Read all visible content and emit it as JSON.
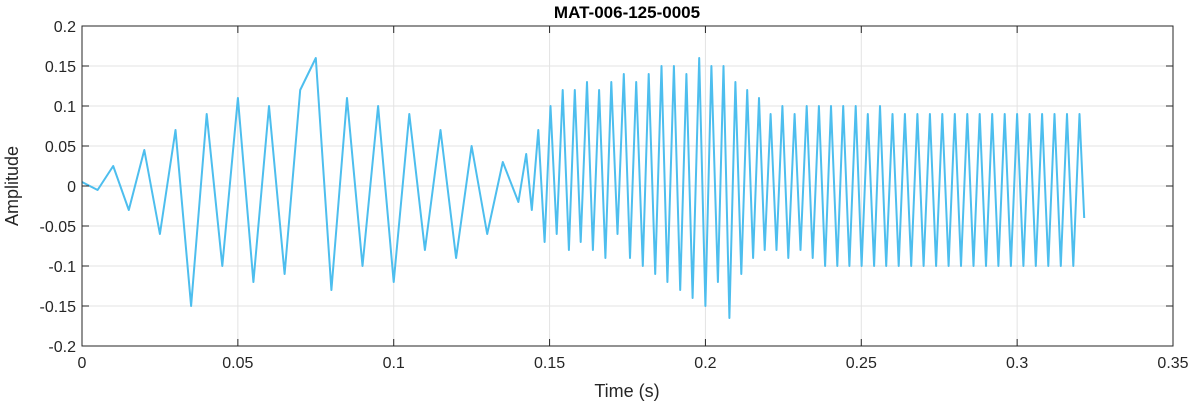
{
  "chart_data": {
    "type": "line",
    "title": "MAT-006-125-0005",
    "xlabel": "Time (s)",
    "ylabel": "Amplitude",
    "xlim": [
      0,
      0.35
    ],
    "ylim": [
      -0.2,
      0.2
    ],
    "xticks": [
      "0",
      "0.05",
      "0.1",
      "0.15",
      "0.2",
      "0.25",
      "0.3",
      "0.35"
    ],
    "yticks": [
      "0.2",
      "0.15",
      "0.1",
      "0.05",
      "0",
      "-0.05",
      "-0.1",
      "-0.15",
      "-0.2"
    ],
    "grid": true,
    "line_color": "#4DBEEE",
    "series": [
      {
        "x": [
          0,
          0.005,
          0.01,
          0.015,
          0.02,
          0.025,
          0.03,
          0.035,
          0.04,
          0.045,
          0.05,
          0.055,
          0.06,
          0.065,
          0.07,
          0.075,
          0.08,
          0.085,
          0.09,
          0.095,
          0.1,
          0.105,
          0.11,
          0.115,
          0.12,
          0.125,
          0.13,
          0.135,
          0.14,
          0.1425,
          0.1443,
          0.1464,
          0.1484,
          0.1503,
          0.1523,
          0.1542,
          0.1562,
          0.1581,
          0.16,
          0.162,
          0.1639,
          0.1659,
          0.1679,
          0.1698,
          0.1718,
          0.1738,
          0.1758,
          0.1778,
          0.1799,
          0.1818,
          0.1839,
          0.1859,
          0.1878,
          0.1899,
          0.1919,
          0.1939,
          0.1959,
          0.198,
          0.2,
          0.2019,
          0.204,
          0.2058,
          0.2077,
          0.2096,
          0.2115,
          0.2134,
          0.2153,
          0.2172,
          0.219,
          0.2209,
          0.2228,
          0.2247,
          0.2266,
          0.2286,
          0.2305,
          0.2325,
          0.2344,
          0.2364,
          0.2384,
          0.2403,
          0.2423,
          0.2442,
          0.2462,
          0.2482,
          0.2501,
          0.2521,
          0.2541,
          0.256,
          0.258,
          0.26,
          0.262,
          0.264,
          0.266,
          0.268,
          0.27,
          0.272,
          0.274,
          0.276,
          0.278,
          0.28,
          0.282,
          0.284,
          0.286,
          0.288,
          0.29,
          0.292,
          0.294,
          0.296,
          0.298,
          0.3,
          0.302,
          0.304,
          0.306,
          0.308,
          0.31,
          0.312,
          0.314,
          0.316,
          0.318,
          0.32,
          0.3215
        ],
        "y": [
          0.005,
          -0.005,
          0.025,
          -0.03,
          0.045,
          -0.06,
          0.07,
          -0.15,
          0.09,
          -0.1,
          0.11,
          -0.12,
          0.1,
          -0.11,
          0.12,
          0.16,
          -0.13,
          0.11,
          -0.1,
          0.1,
          -0.12,
          0.09,
          -0.08,
          0.07,
          -0.09,
          0.05,
          -0.06,
          0.03,
          -0.02,
          0.04,
          -0.03,
          0.07,
          -0.07,
          0.1,
          -0.06,
          0.12,
          -0.08,
          0.12,
          -0.07,
          0.13,
          -0.08,
          0.12,
          -0.09,
          0.13,
          -0.06,
          0.14,
          -0.09,
          0.13,
          -0.1,
          0.14,
          -0.11,
          0.15,
          -0.12,
          0.15,
          -0.13,
          0.14,
          -0.14,
          0.16,
          -0.15,
          0.15,
          -0.12,
          0.15,
          -0.165,
          0.13,
          -0.11,
          0.12,
          -0.09,
          0.11,
          -0.08,
          0.09,
          -0.08,
          0.1,
          -0.09,
          0.09,
          -0.08,
          0.1,
          -0.09,
          0.1,
          -0.1,
          0.1,
          -0.1,
          0.1,
          -0.1,
          0.1,
          -0.1,
          0.09,
          -0.1,
          0.1,
          -0.1,
          0.09,
          -0.1,
          0.09,
          -0.1,
          0.09,
          -0.1,
          0.09,
          -0.1,
          0.09,
          -0.1,
          0.09,
          -0.1,
          0.09,
          -0.1,
          0.09,
          -0.1,
          0.09,
          -0.1,
          0.09,
          -0.1,
          0.09,
          -0.1,
          0.09,
          -0.1,
          0.09,
          -0.1,
          0.09,
          -0.1,
          0.09,
          -0.1,
          0.09,
          -0.04
        ]
      }
    ]
  }
}
